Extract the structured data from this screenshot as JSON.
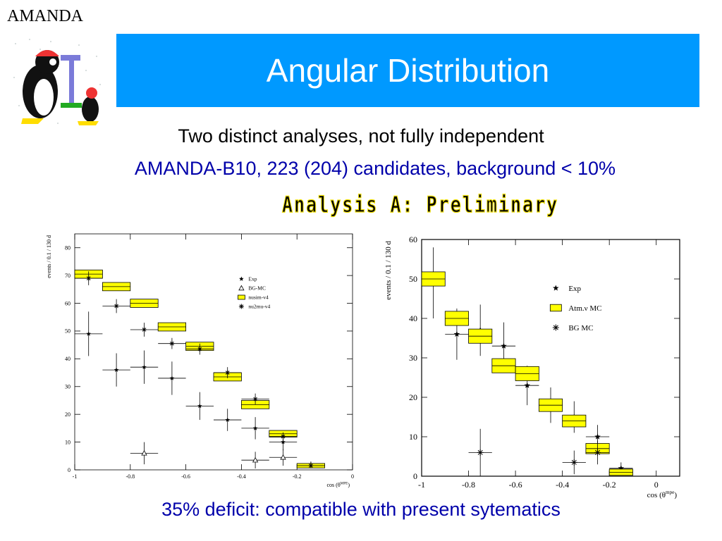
{
  "corner_label": "AMANDA",
  "logo_icon": "penguin-microscope-logo",
  "title": "Angular Distribution",
  "subtitle_line1": "Two distinct analyses, not fully independent",
  "subtitle_line2": "AMANDA-B10, 223 (204) candidates, background < 10%",
  "stamp": "Analysis A: Preliminary",
  "footer": "35% deficit: compatible with present sytematics",
  "colors": {
    "banner": "#0099ff",
    "mc_fill": "#ffff00",
    "accent_text": "#0000aa"
  },
  "chart_data": [
    {
      "type": "scatter",
      "xlabel": "cos (θ",
      "xlabel_sup": "MPE",
      "ylabel": "events / 0.1 / 130 d",
      "xlim": [
        -1,
        0
      ],
      "ylim": [
        0,
        85
      ],
      "xticks": [
        "-1",
        "-0.8",
        "-0.6",
        "-0.4",
        "-0.2",
        "0"
      ],
      "yticks": [
        "0",
        "10",
        "20",
        "30",
        "40",
        "50",
        "60",
        "70",
        "80"
      ],
      "legend_position": "top-right",
      "legend": [
        "Exp",
        "BG-MC",
        "nusim-v4",
        "nu2mu-v4"
      ],
      "series": [
        {
          "name": "Exp",
          "marker": "star",
          "x": [
            -0.95,
            -0.85,
            -0.75,
            -0.65,
            -0.55,
            -0.45,
            -0.35,
            -0.25,
            -0.15
          ],
          "y": [
            49,
            36,
            37,
            33,
            23,
            18,
            15,
            10,
            2
          ],
          "err": [
            8,
            6,
            6,
            6,
            5,
            4,
            4,
            3,
            1
          ]
        },
        {
          "name": "BG-MC",
          "marker": "triangle",
          "x": [
            -0.75,
            -0.35,
            -0.25
          ],
          "y": [
            6,
            3.5,
            4.5
          ],
          "err": [
            4,
            3,
            3
          ]
        },
        {
          "name": "nusim-v4",
          "marker": "box",
          "x": [
            -0.95,
            -0.85,
            -0.75,
            -0.65,
            -0.55,
            -0.45,
            -0.35,
            -0.25,
            -0.15
          ],
          "y": [
            70.5,
            66,
            60,
            51.5,
            44.5,
            33.5,
            23.5,
            13,
            1.5
          ],
          "err": [
            1.5,
            1.5,
            1.5,
            1.5,
            1.5,
            1.5,
            1.5,
            1.2,
            0.8
          ]
        },
        {
          "name": "nu2mu-v4",
          "marker": "asterisk",
          "x": [
            -0.95,
            -0.85,
            -0.75,
            -0.65,
            -0.55,
            -0.45,
            -0.35,
            -0.25,
            -0.15
          ],
          "y": [
            69,
            59,
            50.5,
            45.5,
            43.5,
            35,
            25.5,
            12,
            1.5
          ],
          "err": [
            2.5,
            2.5,
            2.5,
            2,
            2,
            2,
            2,
            1.5,
            0.5
          ]
        }
      ]
    },
    {
      "type": "scatter",
      "xlabel": "cos (θ",
      "xlabel_sup": "mpe",
      "ylabel": "events / 0.1 / 130 d",
      "xlim": [
        -1,
        0.1
      ],
      "ylim": [
        0,
        60
      ],
      "xticks": [
        "-1",
        "-0.8",
        "-0.6",
        "-0.4",
        "-0.2",
        "0"
      ],
      "yticks": [
        "0",
        "10",
        "20",
        "30",
        "40",
        "50",
        "60"
      ],
      "legend_position": "top-right",
      "legend": [
        "Exp",
        "Atm.ν MC",
        "BG MC"
      ],
      "series": [
        {
          "name": "Exp",
          "marker": "star",
          "x": [
            -0.95,
            -0.85,
            -0.75,
            -0.65,
            -0.55,
            -0.45,
            -0.35,
            -0.25,
            -0.15
          ],
          "y": [
            49,
            36,
            37,
            33,
            23,
            18,
            15,
            10,
            2
          ],
          "err": [
            9,
            6.5,
            6.5,
            6,
            5,
            4.5,
            4,
            3,
            1.5
          ]
        },
        {
          "name": "Atm.ν MC",
          "marker": "box",
          "x": [
            -0.95,
            -0.85,
            -0.75,
            -0.65,
            -0.55,
            -0.45,
            -0.35,
            -0.25,
            -0.15
          ],
          "y": [
            50,
            40,
            35.5,
            28,
            26,
            18,
            14,
            7,
            1
          ],
          "err": [
            1.8,
            1.8,
            1.8,
            1.8,
            1.8,
            1.6,
            1.5,
            1.3,
            0.8
          ]
        },
        {
          "name": "BG MC",
          "marker": "asterisk",
          "x": [
            -0.75,
            -0.35,
            -0.25
          ],
          "y": [
            6,
            3.5,
            6
          ],
          "err": [
            6,
            3,
            3
          ]
        }
      ]
    }
  ]
}
